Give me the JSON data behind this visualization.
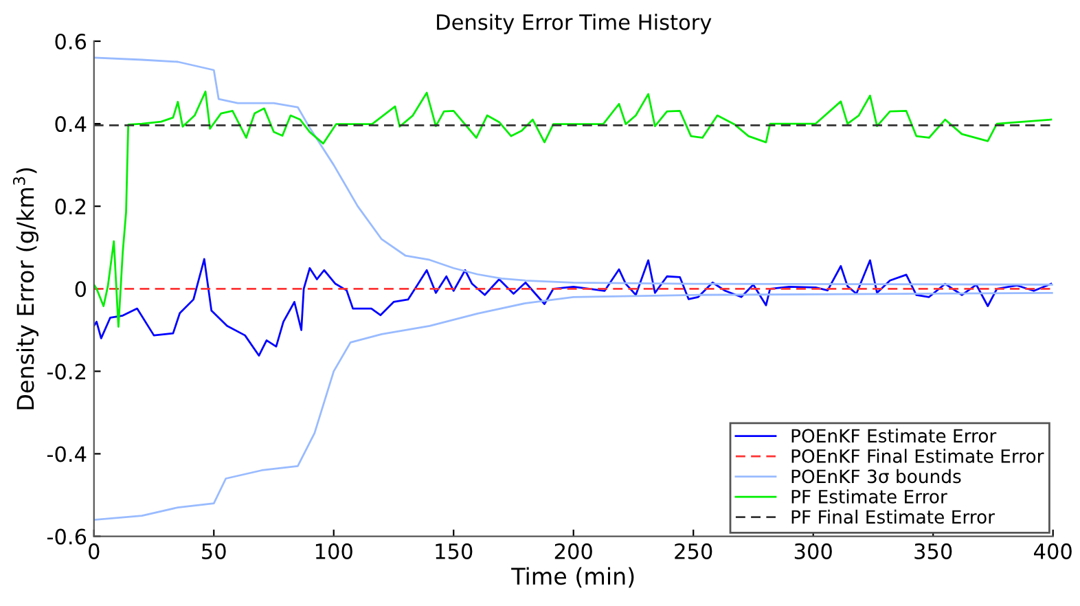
{
  "chart_data": {
    "type": "line",
    "title": "Density Error Time History",
    "xlabel": "Time (min)",
    "ylabel": "Density Error (g/km$^{3}$)",
    "xlim": [
      0,
      400
    ],
    "xticks": [
      0,
      50,
      100,
      150,
      200,
      250,
      300,
      350,
      400
    ],
    "ylim": [
      -0.6,
      0.6
    ],
    "yticks": [
      -0.6,
      -0.4,
      -0.2,
      0,
      0.2,
      0.4,
      0.6
    ],
    "grid": false,
    "legend": "bottom right",
    "series": [
      {
        "name": "POEnKF Estimate Error",
        "color": "#0000ff",
        "line_style": "solid",
        "x": [
          0,
          1.1,
          3,
          6.8,
          12,
          18,
          25,
          33,
          35.8,
          41.5,
          46,
          49,
          55.5,
          63,
          68.8,
          72,
          76,
          79,
          83.6,
          86.5,
          87.5,
          90,
          93,
          96,
          100.7,
          105.4,
          108,
          115.7,
          119.5,
          125,
          131,
          135,
          138.8,
          142.6,
          147,
          150,
          154.8,
          157.7,
          163,
          169,
          175,
          180,
          187.9,
          191.6,
          200,
          206.7,
          213,
          219,
          221.8,
          226,
          231.2,
          234,
          239,
          244.4,
          248,
          252,
          258,
          263.3,
          270,
          275,
          280.3,
          282,
          290,
          301,
          306,
          311.5,
          314.3,
          318,
          323.7,
          326.6,
          332,
          338.8,
          343,
          348.3,
          355,
          362,
          368,
          372.8,
          376.6,
          385,
          392,
          399.2
        ],
        "values": [
          -0.09,
          -0.08,
          -0.12,
          -0.07,
          -0.065,
          -0.048,
          -0.113,
          -0.108,
          -0.059,
          -0.026,
          0.072,
          -0.053,
          -0.09,
          -0.113,
          -0.162,
          -0.125,
          -0.14,
          -0.08,
          -0.032,
          -0.1,
          0,
          0.05,
          0.023,
          0.045,
          0.012,
          -0.004,
          -0.048,
          -0.048,
          -0.064,
          -0.032,
          -0.026,
          0.01,
          0.045,
          -0.01,
          0.03,
          -0.005,
          0.045,
          0.012,
          -0.015,
          0.023,
          -0.012,
          0.015,
          -0.037,
          0,
          0.005,
          0,
          -0.005,
          0.047,
          0.012,
          -0.015,
          0.069,
          -0.01,
          0.03,
          0.028,
          -0.025,
          -0.02,
          0.015,
          -0.005,
          -0.02,
          0.01,
          -0.04,
          0,
          0.005,
          0.003,
          -0.004,
          0.055,
          0.006,
          -0.012,
          0.069,
          -0.01,
          0.02,
          0.034,
          -0.015,
          -0.02,
          0.012,
          -0.015,
          0.01,
          -0.042,
          0,
          0.008,
          -0.005,
          0.012
        ]
      },
      {
        "name": "POEnKF Final Estimate Error",
        "color": "#ff3333",
        "line_style": "dashed",
        "x": [
          0,
          400
        ],
        "values": [
          0,
          0
        ]
      },
      {
        "name": "POEnKF 3σ bounds",
        "color": "#99bbff",
        "line_style": "solid",
        "x": [
          0,
          20,
          35,
          50,
          52,
          60,
          75,
          85,
          90,
          100,
          110,
          120,
          130,
          140,
          150,
          160,
          170,
          180,
          200,
          250,
          400
        ],
        "values": [
          0.56,
          0.555,
          0.55,
          0.53,
          0.46,
          0.45,
          0.45,
          0.44,
          0.39,
          0.3,
          0.2,
          0.12,
          0.08,
          0.07,
          0.05,
          0.035,
          0.025,
          0.02,
          0.015,
          0.012,
          0.01
        ]
      },
      {
        "color": "#99bbff",
        "line_style": "solid",
        "x": [
          0,
          20,
          35,
          50,
          55,
          70,
          85,
          92,
          100,
          107,
          120,
          140,
          160,
          180,
          200,
          250,
          400
        ],
        "values": [
          -0.56,
          -0.55,
          -0.53,
          -0.52,
          -0.46,
          -0.44,
          -0.43,
          -0.35,
          -0.2,
          -0.13,
          -0.11,
          -0.09,
          -0.06,
          -0.035,
          -0.02,
          -0.015,
          -0.01
        ]
      },
      {
        "name": "PF Estimate Error",
        "color": "#00ee00",
        "line_style": "solid",
        "x": [
          0,
          1.1,
          4,
          5.8,
          8.3,
          10.2,
          12,
          13.4,
          14.3,
          20,
          28,
          33,
          35,
          37,
          42,
          46.5,
          48.4,
          53,
          57.8,
          63.5,
          67,
          71,
          75,
          78.6,
          82,
          86,
          90,
          95.6,
          101,
          116,
          125.6,
          127.5,
          133,
          138.8,
          142.6,
          146,
          150,
          159.5,
          164,
          169,
          174,
          178.4,
          183,
          187.9,
          191.6,
          212.4,
          219,
          221.8,
          226,
          231.2,
          234,
          239,
          244.4,
          249,
          253.8,
          260,
          267,
          273,
          280.3,
          282,
          301,
          311.5,
          314.3,
          319,
          323.7,
          326.6,
          332,
          338.8,
          343,
          348.3,
          355,
          362,
          372.8,
          376.6,
          399.2
        ],
        "values": [
          0.01,
          0,
          -0.042,
          0.006,
          0.115,
          -0.092,
          0.088,
          0.186,
          0.398,
          0.4,
          0.405,
          0.415,
          0.453,
          0.393,
          0.42,
          0.478,
          0.388,
          0.425,
          0.431,
          0.366,
          0.425,
          0.437,
          0.38,
          0.371,
          0.42,
          0.41,
          0.38,
          0.352,
          0.399,
          0.399,
          0.442,
          0.393,
          0.42,
          0.475,
          0.394,
          0.43,
          0.431,
          0.366,
          0.42,
          0.404,
          0.37,
          0.383,
          0.41,
          0.355,
          0.399,
          0.399,
          0.448,
          0.399,
          0.42,
          0.472,
          0.394,
          0.43,
          0.431,
          0.37,
          0.366,
          0.42,
          0.399,
          0.37,
          0.355,
          0.4,
          0.4,
          0.454,
          0.4,
          0.42,
          0.468,
          0.394,
          0.43,
          0.431,
          0.37,
          0.366,
          0.41,
          0.375,
          0.358,
          0.4,
          0.41
        ]
      },
      {
        "name": "PF Final Estimate Error",
        "color": "#333333",
        "line_style": "dashed",
        "x": [
          0,
          400
        ],
        "values": [
          0.396,
          0.396
        ]
      }
    ]
  }
}
